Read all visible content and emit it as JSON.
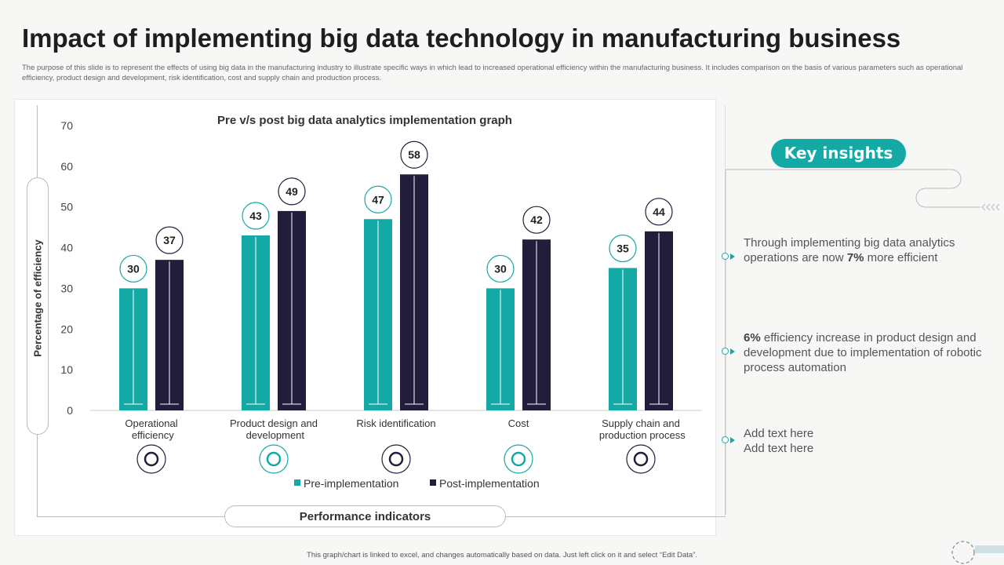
{
  "title": "Impact of implementing big data technology in manufacturing business",
  "description": "The purpose of this slide is to represent the effects of using big data in the manufacturing industry to illustrate specific ways in which lead to increased operational efficiency within the manufacturing business. It includes comparison on the basis of various parameters such as operational efficiency, product design and development, risk identification, cost and supply chain and production process.",
  "chart_data": {
    "type": "bar",
    "title": "Pre v/s post big data analytics implementation graph",
    "xlabel": "Performance indicators",
    "ylabel": "Percentage of efficiency",
    "ylim": [
      0,
      70
    ],
    "yticks": [
      0,
      10,
      20,
      30,
      40,
      50,
      60,
      70
    ],
    "categories": [
      "Operational efficiency",
      "Product design and development",
      "Risk identification",
      "Cost",
      "Supply chain and production process"
    ],
    "category_icons": [
      "gauge-icon",
      "hands-gear-icon",
      "document-chart-icon",
      "money-gear-icon",
      "network-icon"
    ],
    "series": [
      {
        "name": "Pre-implementation",
        "values": [
          30,
          43,
          47,
          30,
          35
        ],
        "color": "#15a9a6"
      },
      {
        "name": "Post-implementation",
        "values": [
          37,
          49,
          58,
          42,
          44
        ],
        "color": "#221d3a"
      }
    ],
    "legend": "bottom",
    "grid": false
  },
  "insights": {
    "heading": "Key insights",
    "items": [
      {
        "pre": "Through  implementing big data analytics operations are now ",
        "bold": "7%",
        "post": " more efficient"
      },
      {
        "pre": "",
        "bold": "6%",
        "post": " efficiency increase in product design and development  due to implementation  of robotic process automation"
      },
      {
        "pre": "Add text  here Add text  here",
        "bold": "",
        "post": ""
      }
    ]
  },
  "footer": "This graph/chart is linked to excel, and changes automatically based on data. Just left click on it and select “Edit Data”."
}
